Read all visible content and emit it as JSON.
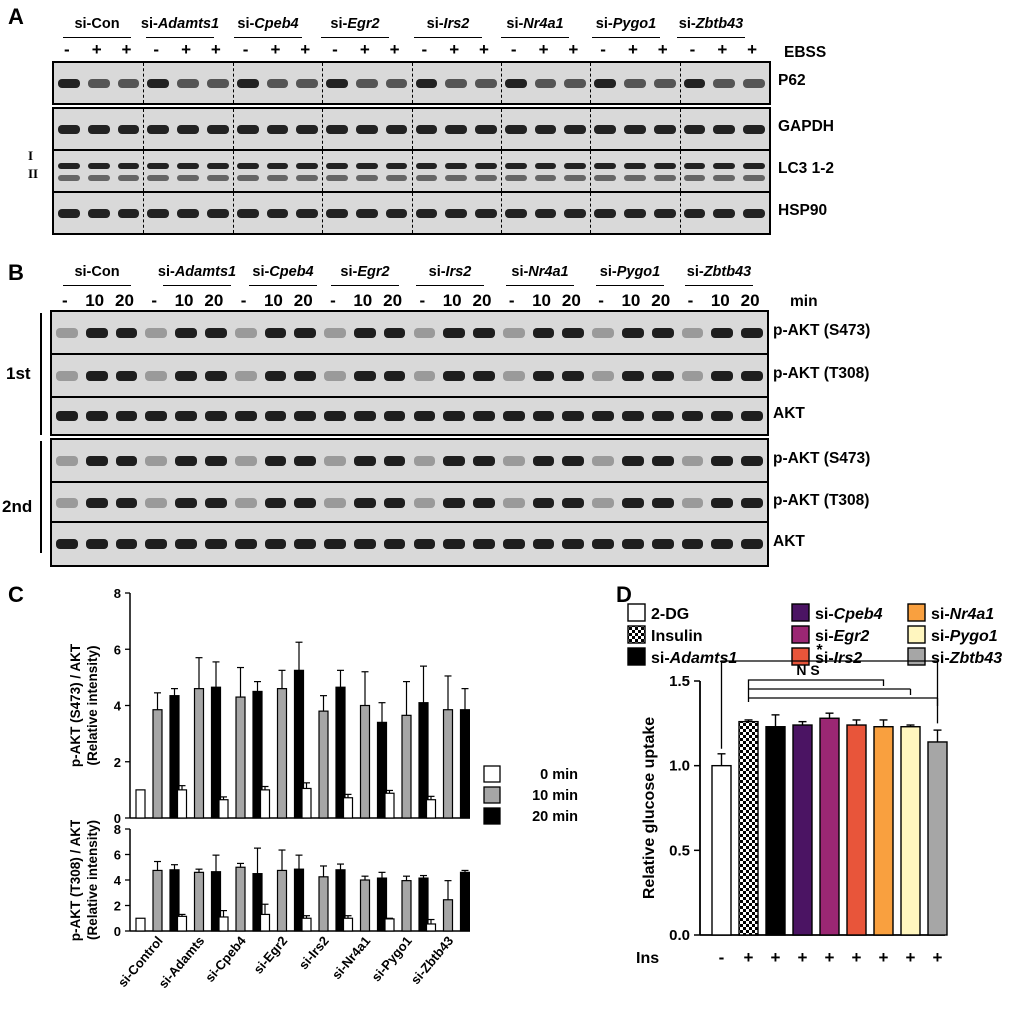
{
  "panels": {
    "A": "A",
    "B": "B",
    "C": "C",
    "D": "D"
  },
  "groups_plain": [
    "si-Con",
    "si-",
    "si-",
    "si-",
    "si-",
    "si-",
    "si-",
    "si-"
  ],
  "groups_italic": [
    "",
    "Adamts1",
    "Cpeb4",
    "Egr2",
    "Irs2",
    "Nr4a1",
    "Pygo1",
    "Zbtb43"
  ],
  "panelA": {
    "symbols": [
      "-",
      "+",
      "+",
      "-",
      "+",
      "+",
      "-",
      "+",
      "+",
      "-",
      "+",
      "+",
      "-",
      "+",
      "+",
      "-",
      "+",
      "+",
      "-",
      "+",
      "+",
      "-",
      "+",
      "+"
    ],
    "condition": "EBSS",
    "rows": [
      "P62",
      "GAPDH",
      "LC3 1-2",
      "HSP90"
    ],
    "lc3_bands": [
      "I",
      "II"
    ]
  },
  "panelB": {
    "symbols": [
      "-",
      "10",
      "20",
      "-",
      "10",
      "20",
      "-",
      "10",
      "20",
      "-",
      "10",
      "20",
      "-",
      "10",
      "20",
      "-",
      "10",
      "20",
      "-",
      "10",
      "20",
      "-",
      "10",
      "20"
    ],
    "unit": "min",
    "rows": [
      "p-AKT (S473)",
      "p-AKT (T308)",
      "AKT",
      "p-AKT (S473)",
      "p-AKT (T308)",
      "AKT"
    ],
    "replicates": [
      "1st",
      "2nd"
    ]
  },
  "chart_data": [
    {
      "type": "bar",
      "title": "",
      "ylabel": "p-AKT (S473) / AKT\n(Relative intensity)",
      "ylim": [
        0,
        8
      ],
      "yticks": [
        "0",
        "2",
        "4",
        "6",
        "8"
      ],
      "categories": [
        "si-Control",
        "si-Adamts",
        "si-Cpeb4",
        "si-Egr2",
        "si-Irs2",
        "si-Nr4a1",
        "si-Pygo1",
        "si-Zbtb43"
      ],
      "series": [
        {
          "name": "0 min",
          "color": "#ffffff",
          "values": [
            1.0,
            1.0,
            0.65,
            1.0,
            1.05,
            0.72,
            0.88,
            0.65
          ],
          "errors": [
            0.0,
            0.15,
            0.1,
            0.12,
            0.2,
            0.12,
            0.1,
            0.12
          ]
        },
        {
          "name": "10 min",
          "color": "#a6a6a6",
          "values": [
            3.85,
            4.6,
            4.3,
            4.6,
            3.8,
            4.0,
            3.65,
            3.85
          ],
          "errors": [
            0.6,
            1.1,
            1.05,
            0.65,
            0.55,
            1.2,
            1.2,
            1.2
          ]
        },
        {
          "name": "20 min",
          "color": "#000000",
          "values": [
            4.35,
            4.65,
            4.5,
            5.25,
            4.65,
            3.4,
            4.1,
            3.85
          ],
          "errors": [
            0.25,
            0.9,
            0.35,
            1.0,
            0.6,
            0.7,
            1.3,
            0.75
          ]
        }
      ]
    },
    {
      "type": "bar",
      "title": "",
      "xlabel": "",
      "ylabel": "p-AKT (T308) / AKT\n(Relative intensity)",
      "ylim": [
        0,
        8
      ],
      "yticks": [
        "0",
        "2",
        "4",
        "6",
        "8"
      ],
      "categories": [
        "si-Control",
        "si-Adamts",
        "si-Cpeb4",
        "si-Egr2",
        "si-Irs2",
        "si-Nr4a1",
        "si-Pygo1",
        "si-Zbtb43"
      ],
      "series": [
        {
          "name": "0 min",
          "color": "#ffffff",
          "values": [
            1.0,
            1.15,
            1.1,
            1.3,
            1.0,
            1.0,
            0.95,
            0.55
          ],
          "errors": [
            0.0,
            0.15,
            0.5,
            0.8,
            0.2,
            0.2,
            0.05,
            0.35
          ]
        },
        {
          "name": "10 min",
          "color": "#a6a6a6",
          "values": [
            4.75,
            4.6,
            5.0,
            4.75,
            4.25,
            4.0,
            3.95,
            2.45
          ],
          "errors": [
            0.7,
            0.25,
            0.3,
            1.6,
            0.85,
            0.3,
            0.35,
            1.5
          ]
        },
        {
          "name": "20 min",
          "color": "#000000",
          "values": [
            4.8,
            4.65,
            4.5,
            4.85,
            4.8,
            4.15,
            4.15,
            4.6
          ],
          "errors": [
            0.4,
            1.3,
            2.0,
            1.1,
            0.45,
            0.45,
            0.2,
            0.15
          ]
        }
      ]
    },
    {
      "type": "bar",
      "title": "",
      "ylabel": "Relative glucose uptake",
      "ylim": [
        0,
        1.5
      ],
      "yticks": [
        "0.0",
        "0.5",
        "1.0",
        "1.5"
      ],
      "categories": [
        "2-DG",
        "Insulin",
        "si-Adamts1",
        "si-Cpeb4",
        "si-Egr2",
        "si-Irs2",
        "si-Nr4a1",
        "si-Pygo1",
        "si-Zbtb43"
      ],
      "values": [
        1.0,
        1.26,
        1.23,
        1.24,
        1.28,
        1.24,
        1.23,
        1.23,
        1.14
      ],
      "errors": [
        0.07,
        0.01,
        0.07,
        0.02,
        0.03,
        0.03,
        0.04,
        0.01,
        0.07
      ],
      "colors": [
        "#ffffff",
        "pattern",
        "#000000",
        "#4b1463",
        "#9b2773",
        "#e8553a",
        "#f9a03f",
        "#fff6bf",
        "#a6a6a6"
      ],
      "ins_symbols": [
        "-",
        "+",
        "+",
        "+",
        "+",
        "+",
        "+",
        "+",
        "+"
      ],
      "ins_label": "Ins",
      "significance": [
        "*",
        "N S"
      ]
    }
  ],
  "legendC": [
    "0 min",
    "10 min",
    "20 min"
  ],
  "legendD": [
    {
      "pre": "2-DG",
      "it": ""
    },
    {
      "pre": "Insulin",
      "it": ""
    },
    {
      "pre": "si-",
      "it": "Adamts1"
    },
    {
      "pre": "si-",
      "it": "Cpeb4"
    },
    {
      "pre": "si-",
      "it": "Egr2"
    },
    {
      "pre": "si-",
      "it": "Irs2"
    },
    {
      "pre": "si-",
      "it": "Nr4a1"
    },
    {
      "pre": "si-",
      "it": "Pygo1"
    },
    {
      "pre": "si-",
      "it": "Zbtb43"
    }
  ]
}
